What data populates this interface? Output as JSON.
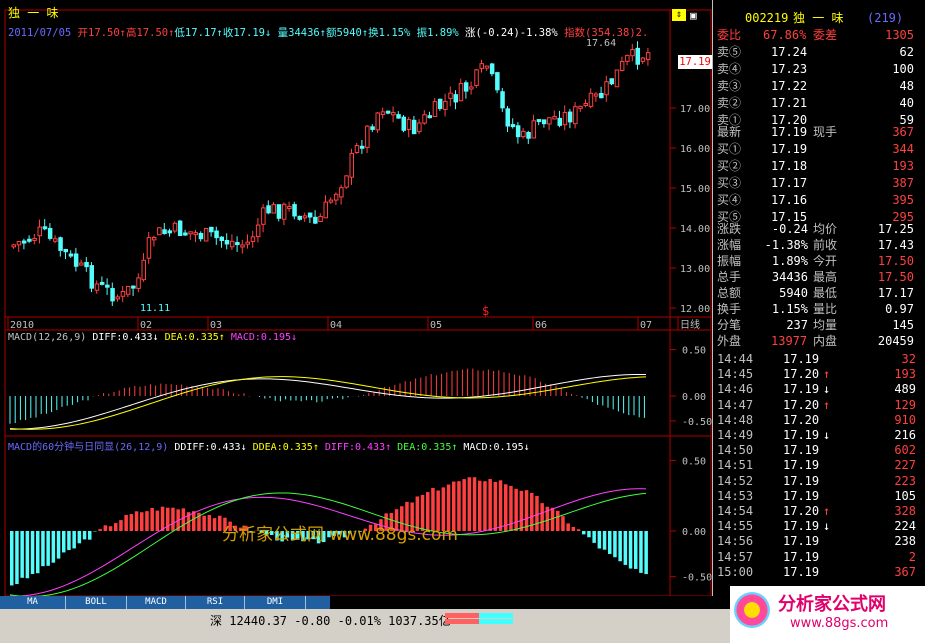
{
  "stock": {
    "name": "独 一 味",
    "code": "002219",
    "count": "(219)"
  },
  "quote_line": {
    "date": "2011/07/05",
    "open": "开17.50↑",
    "high": "高17.50↑",
    "low": "低17.17↑",
    "close": "收17.19↓",
    "vol": "量34436↑",
    "amount": "额5940↑",
    "turnover": "换1.15%",
    "amp": "振1.89%",
    "change": "涨(-0.24)-1.38%",
    "index": "指数(354.38)2."
  },
  "price_axis": [
    "17.00",
    "16.00",
    "15.00",
    "14.00",
    "13.00",
    "12.00"
  ],
  "price_marker": "17.19",
  "high_label": "17.64",
  "low_label": "11.11",
  "time_axis": [
    "2010",
    "02",
    "03",
    "04",
    "05",
    "06",
    "07",
    "日线"
  ],
  "macd": {
    "title": "MACD(12,26,9)",
    "diff": "DIFF:0.433↓",
    "dea": "DEA:0.335↑",
    "macd": "MACD:0.195↓",
    "axis": [
      "0.50",
      "0.00",
      "-0.50"
    ]
  },
  "macd60": {
    "title": "MACD的60分钟与日同显(26,12,9)",
    "ddiff": "DDIFF:0.433↓",
    "ddea": "DDEA:0.335↑",
    "diff": "DIFF:0.433↑",
    "dea": "DEA:0.335↑",
    "macd": "MACD:0.195↓",
    "axis": [
      "0.50",
      "0.00",
      "-0.50"
    ]
  },
  "watermark": "分析家公式网 www.88gs.com",
  "tabs": [
    "MA",
    "BOLL",
    "MACD",
    "RSI",
    "DMI"
  ],
  "index_bar": "深 12440.37 -0.80 -0.01% 1037.35亿",
  "logo": {
    "text": "分析家公式网",
    "url": "www.88gs.com"
  },
  "side": {
    "ratio": {
      "label1": "委比",
      "v1": "67.86%",
      "label2": "委差",
      "v2": "1305"
    },
    "sell": [
      {
        "label": "卖⑤",
        "price": "17.24",
        "vol": "62"
      },
      {
        "label": "卖④",
        "price": "17.23",
        "vol": "100"
      },
      {
        "label": "卖③",
        "price": "17.22",
        "vol": "48"
      },
      {
        "label": "卖②",
        "price": "17.21",
        "vol": "40"
      },
      {
        "label": "卖①",
        "price": "17.20",
        "vol": "59"
      }
    ],
    "latest": {
      "label": "最新",
      "price": "17.19",
      "label2": "现手",
      "vol": "367"
    },
    "buy": [
      {
        "label": "买①",
        "price": "17.19",
        "vol": "344"
      },
      {
        "label": "买②",
        "price": "17.18",
        "vol": "193"
      },
      {
        "label": "买③",
        "price": "17.17",
        "vol": "387"
      },
      {
        "label": "买④",
        "price": "17.16",
        "vol": "395"
      },
      {
        "label": "买⑤",
        "price": "17.15",
        "vol": "295"
      }
    ],
    "stats": [
      {
        "l1": "涨跌",
        "v1": "-0.24",
        "l2": "均价",
        "v2": "17.25"
      },
      {
        "l1": "涨幅",
        "v1": "-1.38%",
        "l2": "前收",
        "v2": "17.43"
      },
      {
        "l1": "振幅",
        "v1": "1.89%",
        "l2": "今开",
        "v2": "17.50"
      },
      {
        "l1": "总手",
        "v1": "34436",
        "l2": "最高",
        "v2": "17.50"
      },
      {
        "l1": "总额",
        "v1": "5940",
        "l2": "最低",
        "v2": "17.17"
      },
      {
        "l1": "换手",
        "v1": "1.15%",
        "l2": "量比",
        "v2": "0.97"
      },
      {
        "l1": "分笔",
        "v1": "237",
        "l2": "均量",
        "v2": "145"
      }
    ],
    "outer": {
      "l1": "外盘",
      "v1": "13977",
      "l2": "内盘",
      "v2": "20459"
    },
    "ticks": [
      {
        "t": "14:44",
        "p": "17.19",
        "a": "",
        "v": "32"
      },
      {
        "t": "14:45",
        "p": "17.20",
        "a": "↑",
        "v": "193"
      },
      {
        "t": "14:46",
        "p": "17.19",
        "a": "↓",
        "v": "489"
      },
      {
        "t": "14:47",
        "p": "17.20",
        "a": "↑",
        "v": "129"
      },
      {
        "t": "14:48",
        "p": "17.20",
        "a": "",
        "v": "910"
      },
      {
        "t": "14:49",
        "p": "17.19",
        "a": "↓",
        "v": "216"
      },
      {
        "t": "14:50",
        "p": "17.19",
        "a": "",
        "v": "602"
      },
      {
        "t": "14:51",
        "p": "17.19",
        "a": "",
        "v": "227"
      },
      {
        "t": "14:52",
        "p": "17.19",
        "a": "",
        "v": "223"
      },
      {
        "t": "14:53",
        "p": "17.19",
        "a": "",
        "v": "105"
      },
      {
        "t": "14:54",
        "p": "17.20",
        "a": "↑",
        "v": "328"
      },
      {
        "t": "14:55",
        "p": "17.19",
        "a": "↓",
        "v": "224"
      },
      {
        "t": "14:56",
        "p": "17.19",
        "a": "",
        "v": "238"
      },
      {
        "t": "14:57",
        "p": "17.19",
        "a": "",
        "v": "2"
      },
      {
        "t": "15:00",
        "p": "17.19",
        "a": "",
        "v": "367"
      }
    ]
  },
  "colors": {
    "up": "#ff4040",
    "down": "#54fcfc",
    "bg": "#000000",
    "grid": "#a00000"
  }
}
